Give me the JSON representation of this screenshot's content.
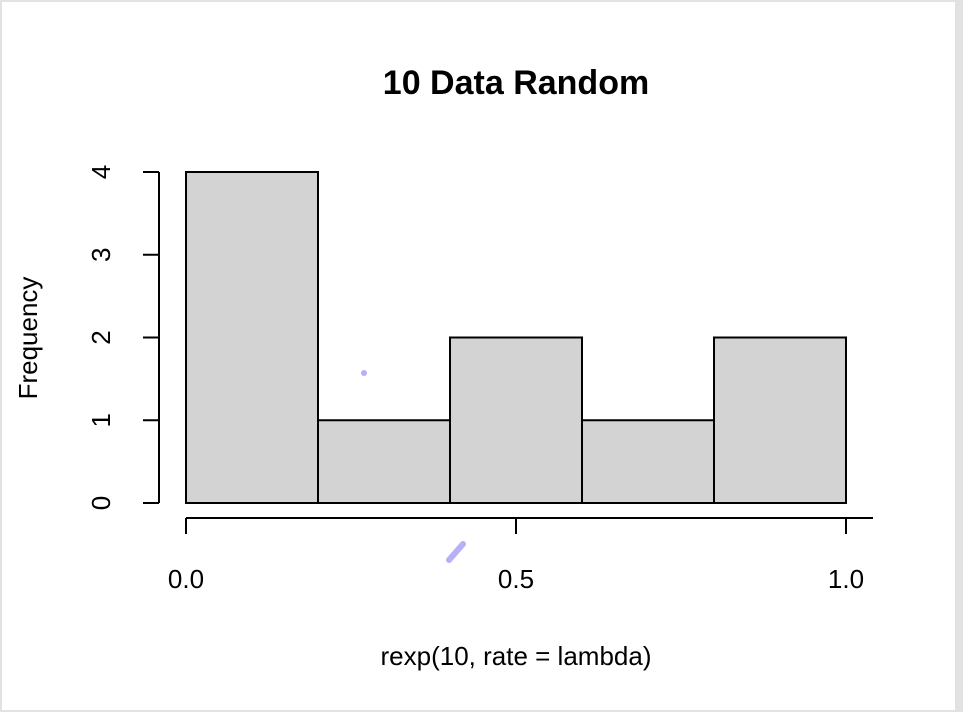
{
  "chart_data": {
    "type": "bar",
    "title": "10 Data Random",
    "xlabel": "rexp(10, rate = lambda)",
    "ylabel": "Frequency",
    "bins": [
      [
        0.0,
        0.2
      ],
      [
        0.2,
        0.4
      ],
      [
        0.4,
        0.6
      ],
      [
        0.6,
        0.8
      ],
      [
        0.8,
        1.0
      ]
    ],
    "values": [
      4,
      1,
      2,
      1,
      2
    ],
    "xlim": [
      0.0,
      1.0
    ],
    "ylim": [
      0,
      4
    ],
    "x_ticks": [
      "0.0",
      "0.5",
      "1.0"
    ],
    "x_tick_values": [
      0.0,
      0.5,
      1.0
    ],
    "y_ticks": [
      "0",
      "1",
      "2",
      "3",
      "4"
    ],
    "y_tick_values": [
      0,
      1,
      2,
      3,
      4
    ],
    "grid": false,
    "bar_color": "#d3d3d3",
    "annotation_color": "#b6b0f8"
  }
}
